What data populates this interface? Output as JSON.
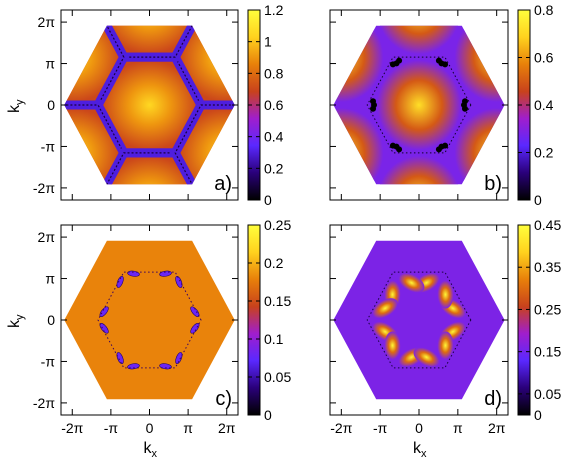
{
  "figure": {
    "x_tick_labels": [
      "-2π",
      "-π",
      "0",
      "π",
      "2π"
    ],
    "y_tick_labels": [
      "2π",
      "π",
      "0",
      "-π",
      "-2π"
    ],
    "xlabel_main": "k",
    "xlabel_sub": "x",
    "ylabel_main": "k",
    "ylabel_sub": "y"
  },
  "colormap": [
    "#000000",
    "#2a007a",
    "#5a28ff",
    "#a01ecc",
    "#c8421c",
    "#e8800a",
    "#ffd21e",
    "#ffff3c"
  ],
  "chart_data": [
    {
      "type": "heatmap",
      "panel_label": "a)",
      "xlim": [
        -7.2,
        7.2
      ],
      "ylim": [
        -7.2,
        7.2
      ],
      "x_ticks": [
        -6.2832,
        -3.1416,
        0,
        3.1416,
        6.2832
      ],
      "y_ticks": [
        6.2832,
        3.1416,
        0,
        -3.1416,
        -6.2832
      ],
      "color_range": [
        0,
        1.2
      ],
      "colorbar_ticks": [
        "1.2",
        "1",
        "0.8",
        "0.6",
        "0.4",
        "0.2",
        "0"
      ],
      "colorbar_tick_values": [
        1.2,
        1.0,
        0.8,
        0.6,
        0.4,
        0.2,
        0
      ],
      "field": "hex_dome",
      "max_value": 1.05,
      "dominant_color_value": 0.7,
      "min_value": 0.3
    },
    {
      "type": "heatmap",
      "panel_label": "b)",
      "xlim": [
        -7.2,
        7.2
      ],
      "ylim": [
        -7.2,
        7.2
      ],
      "x_ticks": [
        -6.2832,
        -3.1416,
        0,
        3.1416,
        6.2832
      ],
      "y_ticks": [
        6.2832,
        3.1416,
        0,
        -3.1416,
        -6.2832
      ],
      "color_range": [
        0,
        0.8
      ],
      "colorbar_ticks": [
        "0.8",
        "0.6",
        "0.4",
        "0.2",
        "0"
      ],
      "colorbar_tick_values": [
        0.8,
        0.6,
        0.4,
        0.2,
        0
      ],
      "field": "round_dome",
      "max_value": 0.72,
      "background_value": 0.28,
      "min_value": 0.0
    },
    {
      "type": "heatmap",
      "panel_label": "c)",
      "xlim": [
        -7.2,
        7.2
      ],
      "ylim": [
        -7.2,
        7.2
      ],
      "x_ticks": [
        -6.2832,
        -3.1416,
        0,
        3.1416,
        6.2832
      ],
      "y_ticks": [
        6.2832,
        3.1416,
        0,
        -3.1416,
        -6.2832
      ],
      "color_range": [
        0,
        0.25
      ],
      "colorbar_ticks": [
        "0.25",
        "0.2",
        "0.15",
        "0.1",
        "0.05",
        "0"
      ],
      "colorbar_tick_values": [
        0.25,
        0.2,
        0.15,
        0.1,
        0.05,
        0
      ],
      "field": "flat_with_lobes",
      "background_value": 0.18,
      "min_value": 0.03
    },
    {
      "type": "heatmap",
      "panel_label": "d)",
      "xlim": [
        -7.2,
        7.2
      ],
      "ylim": [
        -7.2,
        7.2
      ],
      "x_ticks": [
        -6.2832,
        -3.1416,
        0,
        3.1416,
        6.2832
      ],
      "y_ticks": [
        6.2832,
        3.1416,
        0,
        -3.1416,
        -6.2832
      ],
      "color_range": [
        0,
        0.45
      ],
      "colorbar_ticks": [
        "0.45",
        "0.35",
        "0.25",
        "0.15",
        "0.05",
        "0"
      ],
      "colorbar_tick_values": [
        0.45,
        0.35,
        0.25,
        0.15,
        0.05,
        0
      ],
      "field": "lobes_high",
      "background_value": 0.16,
      "max_value": 0.44
    }
  ]
}
